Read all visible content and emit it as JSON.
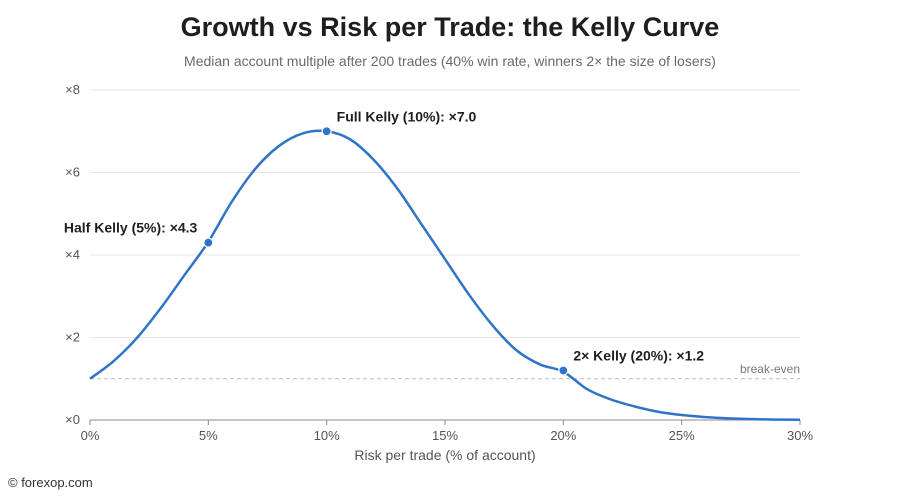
{
  "chart_data": {
    "type": "line",
    "title": "Growth vs Risk per Trade: the Kelly Curve",
    "subtitle": "Median account multiple after 200 trades (40% win rate, winners 2× the size of losers)",
    "xlabel": "Risk per trade (% of account)",
    "ylabel": "",
    "xlim": [
      0,
      30
    ],
    "ylim": [
      0,
      8
    ],
    "x_ticks": [
      0,
      5,
      10,
      15,
      20,
      25,
      30
    ],
    "x_tick_labels": [
      "0%",
      "5%",
      "10%",
      "15%",
      "20%",
      "25%",
      "30%"
    ],
    "y_ticks": [
      0,
      2,
      4,
      6,
      8
    ],
    "y_tick_labels": [
      "×0",
      "×2",
      "×4",
      "×6",
      "×8"
    ],
    "grid": "horizontal",
    "legend": "none",
    "series": [
      {
        "color": "#2f74c9",
        "x": [
          0,
          1,
          2,
          3,
          4,
          5,
          6,
          7,
          8,
          9,
          10,
          11,
          12,
          13,
          14,
          15,
          16,
          17,
          18,
          19,
          20,
          21,
          22,
          23,
          24,
          25,
          26,
          27,
          28,
          29,
          30
        ],
        "y": [
          1.0,
          1.43,
          2.0,
          2.72,
          3.52,
          4.32,
          5.3,
          6.1,
          6.65,
          6.95,
          7.0,
          6.8,
          6.3,
          5.6,
          4.75,
          3.9,
          3.05,
          2.3,
          1.7,
          1.35,
          1.17,
          0.75,
          0.5,
          0.33,
          0.2,
          0.12,
          0.07,
          0.04,
          0.02,
          0.01,
          0.005
        ]
      }
    ],
    "highlight_points": [
      {
        "x": 5,
        "y": 4.3,
        "label": "Half Kelly (5%): ×4.3",
        "side": "left"
      },
      {
        "x": 10,
        "y": 7.0,
        "label": "Full Kelly (10%): ×7.0",
        "side": "right"
      },
      {
        "x": 20,
        "y": 1.2,
        "label": "2× Kelly (20%): ×1.2",
        "side": "right"
      }
    ],
    "reference_line": {
      "y": 1,
      "label": "break-even"
    }
  },
  "footer": "© forexop.com"
}
